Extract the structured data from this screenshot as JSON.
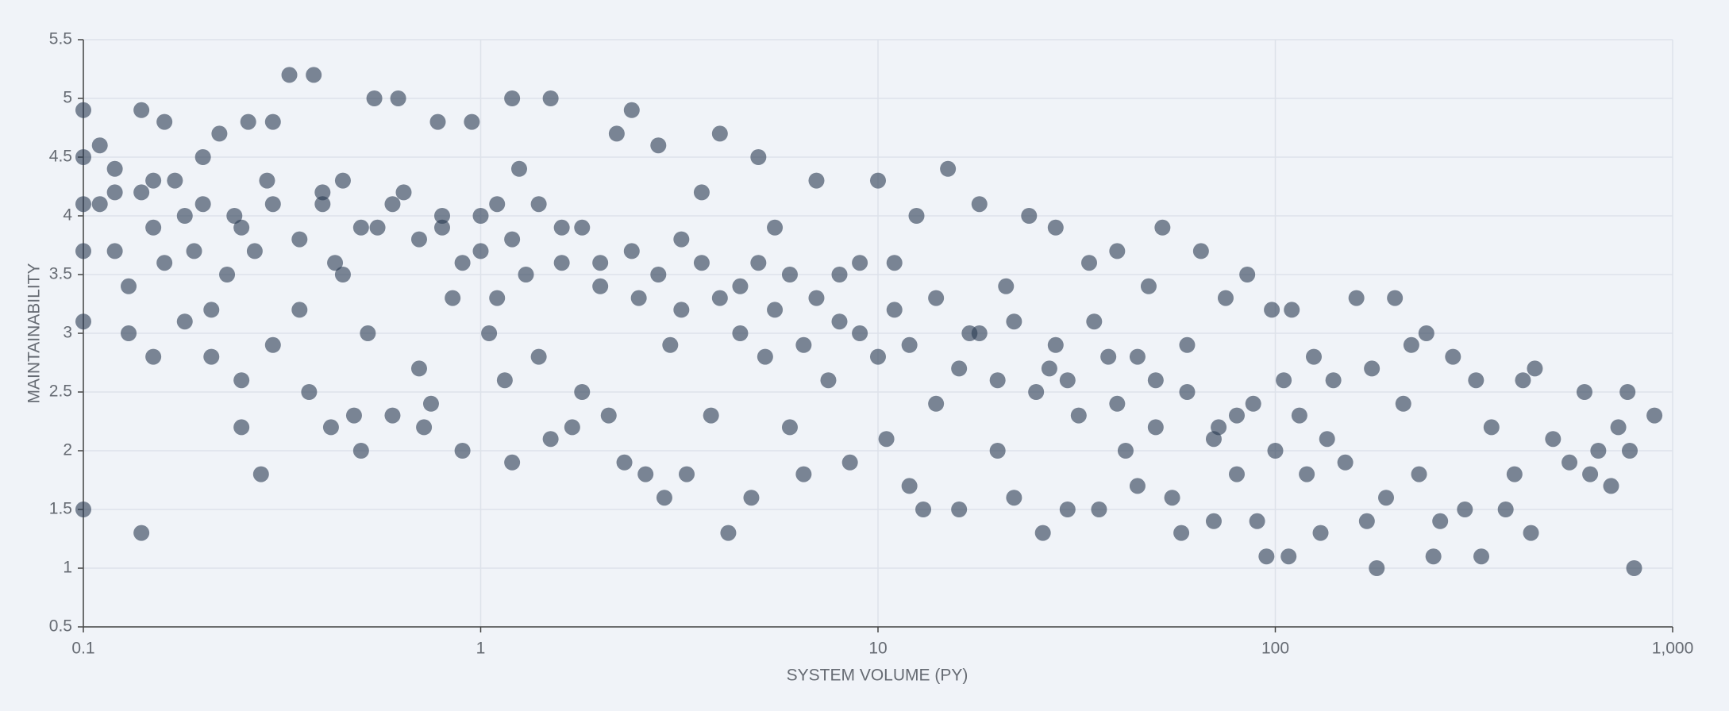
{
  "chart_data": {
    "type": "scatter",
    "xlabel": "SYSTEM VOLUME (PY)",
    "ylabel": "MAINTAINABILITY",
    "xscale": "log",
    "grid": true,
    "xlim": [
      0.1,
      1000
    ],
    "xticks": [
      0.1,
      1,
      10,
      100,
      {
        "value": 1000,
        "label": "1,000"
      }
    ],
    "ylim": [
      0.5,
      5.5
    ],
    "yticks": [
      0.5,
      1,
      1.5,
      2,
      2.5,
      3,
      3.5,
      4,
      4.5,
      5,
      5.5
    ],
    "series": [
      {
        "color": "#2a3b52",
        "x": [
          0.1,
          0.1,
          0.1,
          0.1,
          0.1,
          0.1,
          0.11,
          0.11,
          0.12,
          0.12,
          0.13,
          0.13,
          0.14,
          0.14,
          0.14,
          0.15,
          0.15,
          0.16,
          0.16,
          0.17,
          0.18,
          0.18,
          0.19,
          0.2,
          0.21,
          0.21,
          0.22,
          0.23,
          0.24,
          0.25,
          0.25,
          0.26,
          0.27,
          0.28,
          0.29,
          0.3,
          0.3,
          0.33,
          0.35,
          0.37,
          0.38,
          0.4,
          0.42,
          0.43,
          0.45,
          0.48,
          0.5,
          0.52,
          0.54,
          0.55,
          0.6,
          0.62,
          0.64,
          0.7,
          0.72,
          0.75,
          0.78,
          0.8,
          0.85,
          0.9,
          0.95,
          1.0,
          1.05,
          1.1,
          1.15,
          1.2,
          1.2,
          1.25,
          1.3,
          1.4,
          1.5,
          1.5,
          1.6,
          1.7,
          1.8,
          2.0,
          2.1,
          2.2,
          2.3,
          2.4,
          2.5,
          2.6,
          2.8,
          2.9,
          3.0,
          3.2,
          3.3,
          3.6,
          3.8,
          4.0,
          4.2,
          4.5,
          4.8,
          5.0,
          5.2,
          5.5,
          6.0,
          6.5,
          7.0,
          7.5,
          8.0,
          8.5,
          9.0,
          10,
          10.5,
          11,
          12,
          12.5,
          13,
          14,
          15,
          16,
          17,
          18,
          20,
          21,
          22,
          24,
          26,
          27,
          28,
          30,
          32,
          34,
          36,
          38,
          40,
          42,
          45,
          48,
          50,
          52,
          55,
          58,
          60,
          65,
          70,
          72,
          75,
          80,
          85,
          88,
          90,
          95,
          98,
          100,
          105,
          108,
          110,
          115,
          120,
          125,
          130,
          135,
          140,
          150,
          160,
          170,
          175,
          180,
          190,
          200,
          210,
          220,
          230,
          240,
          250,
          260,
          280,
          300,
          320,
          330,
          350,
          380,
          400,
          420,
          440,
          450,
          500,
          550,
          600,
          620,
          650,
          700,
          730,
          770,
          780,
          800,
          900,
          0.12,
          0.5,
          0.6,
          0.7,
          0.8,
          0.9,
          1.0,
          1.2,
          1.4,
          1.6,
          1.8,
          2.0,
          2.4,
          2.8,
          3.2,
          3.6,
          4.0,
          4.5,
          5.0,
          5.5,
          6.0,
          6.5,
          7.0,
          8.0,
          9.0,
          10,
          11,
          12,
          14,
          16,
          18,
          20,
          22,
          25,
          28,
          30,
          35,
          40,
          45,
          50,
          60,
          70,
          80,
          0.3,
          0.35,
          0.4,
          0.25,
          0.2,
          0.15,
          0.45,
          1.1
        ],
        "values": [
          4.9,
          4.5,
          4.1,
          3.1,
          1.5,
          3.7,
          4.6,
          4.1,
          4.4,
          3.7,
          3.4,
          3.0,
          1.3,
          4.9,
          4.2,
          2.8,
          3.9,
          4.8,
          3.6,
          4.3,
          3.1,
          4.0,
          3.7,
          4.5,
          2.8,
          3.2,
          4.7,
          3.5,
          4.0,
          2.6,
          2.2,
          4.8,
          3.7,
          1.8,
          4.3,
          4.8,
          2.9,
          5.2,
          3.2,
          2.5,
          5.2,
          4.1,
          2.2,
          3.6,
          4.3,
          2.3,
          2.0,
          3.0,
          5.0,
          3.9,
          2.3,
          5.0,
          4.2,
          2.7,
          2.2,
          2.4,
          4.8,
          3.9,
          3.3,
          2.0,
          4.8,
          3.7,
          3.0,
          4.1,
          2.6,
          5.0,
          1.9,
          4.4,
          3.5,
          2.8,
          5.0,
          2.1,
          3.9,
          2.2,
          2.5,
          3.6,
          2.3,
          4.7,
          1.9,
          4.9,
          3.3,
          1.8,
          4.6,
          1.6,
          2.9,
          3.8,
          1.8,
          4.2,
          2.3,
          4.7,
          1.3,
          3.4,
          1.6,
          4.5,
          2.8,
          3.9,
          2.2,
          1.8,
          4.3,
          2.6,
          3.5,
          1.9,
          3.0,
          4.3,
          2.1,
          3.6,
          1.7,
          4.0,
          1.5,
          2.4,
          4.4,
          1.5,
          3.0,
          4.1,
          2.0,
          3.4,
          1.6,
          4.0,
          1.3,
          2.7,
          3.9,
          1.5,
          2.3,
          3.6,
          1.5,
          2.8,
          3.7,
          2.0,
          1.7,
          3.4,
          2.6,
          3.9,
          1.6,
          1.3,
          2.9,
          3.7,
          1.4,
          2.2,
          3.3,
          1.8,
          3.5,
          2.4,
          1.4,
          1.1,
          3.2,
          2.0,
          2.6,
          1.1,
          3.2,
          2.3,
          1.8,
          2.8,
          1.3,
          2.1,
          2.6,
          1.9,
          3.3,
          1.4,
          2.7,
          1.0,
          1.6,
          3.3,
          2.4,
          2.9,
          1.8,
          3.0,
          1.1,
          1.4,
          2.8,
          1.5,
          2.6,
          1.1,
          2.2,
          1.5,
          1.8,
          2.6,
          1.3,
          2.7,
          2.1,
          1.9,
          2.5,
          1.8,
          2.0,
          1.7,
          2.2,
          2.5,
          2.0,
          1.0,
          2.3,
          4.2,
          3.9,
          4.1,
          3.8,
          4.0,
          3.6,
          4.0,
          3.8,
          4.1,
          3.6,
          3.9,
          3.4,
          3.7,
          3.5,
          3.2,
          3.6,
          3.3,
          3.0,
          3.6,
          3.2,
          3.5,
          2.9,
          3.3,
          3.1,
          3.6,
          2.8,
          3.2,
          2.9,
          3.3,
          2.7,
          3.0,
          2.6,
          3.1,
          2.5,
          2.9,
          2.6,
          3.1,
          2.4,
          2.8,
          2.2,
          2.5,
          2.1,
          2.3,
          4.1,
          3.8,
          4.2,
          3.9,
          4.1,
          4.3,
          3.5,
          3.3
        ]
      }
    ]
  }
}
